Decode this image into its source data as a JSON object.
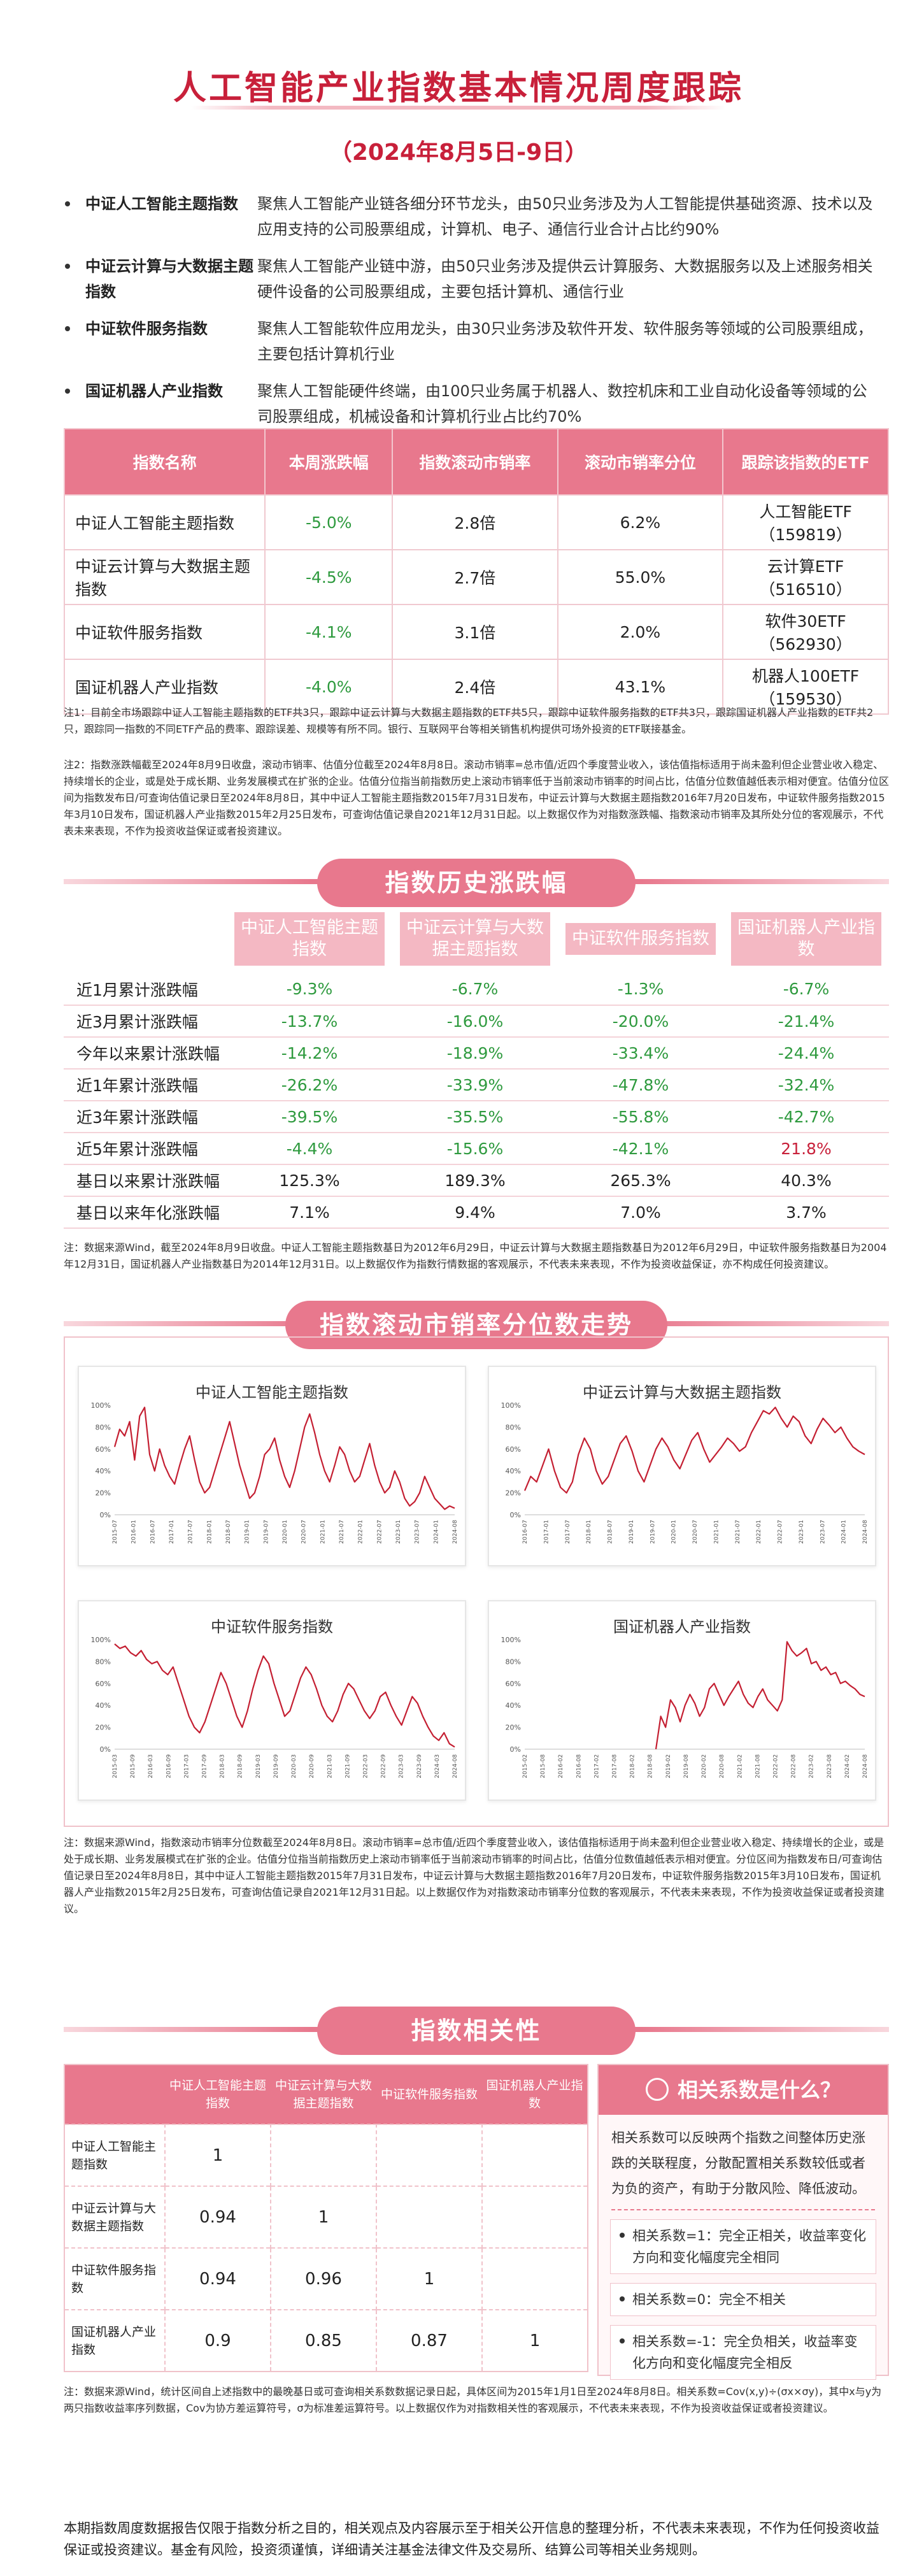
{
  "header": {
    "title": "人工智能产业指数基本情况周度跟踪",
    "subtitle": "（2024年8月5日-9日）"
  },
  "descriptions": [
    {
      "name": "中证人工智能主题指数",
      "text": "聚焦人工智能产业链各细分环节龙头，由50只业务涉及为人工智能提供基础资源、技术以及应用支持的公司股票组成，计算机、电子、通信行业合计占比约90%"
    },
    {
      "name": "中证云计算与大数据主题指数",
      "text": "聚焦人工智能产业链中游，由50只业务涉及提供云计算服务、大数据服务以及上述服务相关硬件设备的公司股票组成，主要包括计算机、通信行业"
    },
    {
      "name": "中证软件服务指数",
      "text": "聚焦人工智能软件应用龙头，由30只业务涉及软件开发、软件服务等领域的公司股票组成，主要包括计算机行业"
    },
    {
      "name": "国证机器人产业指数",
      "text": "聚焦人工智能硬件终端，由100只业务属于机器人、数控机床和工业自动化设备等领域的公司股票组成，机械设备和计算机行业占比约70%"
    }
  ],
  "overview_table": {
    "headers": [
      "指数名称",
      "本周涨跌幅",
      "指数滚动市销率",
      "滚动市销率分位",
      "跟踪该指数的ETF"
    ],
    "rows": [
      {
        "name": "中证人工智能主题指数",
        "weekly": "-5.0%",
        "ps": "2.8倍",
        "pct": "6.2%",
        "etf": "人工智能ETF",
        "etf_code": "（159819）"
      },
      {
        "name": "中证云计算与大数据主题指数",
        "weekly": "-4.5%",
        "ps": "2.7倍",
        "pct": "55.0%",
        "etf": "云计算ETF",
        "etf_code": "（516510）"
      },
      {
        "name": "中证软件服务指数",
        "weekly": "-4.1%",
        "ps": "3.1倍",
        "pct": "2.0%",
        "etf": "软件30ETF",
        "etf_code": "（562930）"
      },
      {
        "name": "国证机器人产业指数",
        "weekly": "-4.0%",
        "ps": "2.4倍",
        "pct": "43.1%",
        "etf": "机器人100ETF",
        "etf_code": "（159530）"
      }
    ],
    "notes": [
      "注1：目前全市场跟踪中证人工智能主题指数的ETF共3只，跟踪中证云计算与大数据主题指数的ETF共5只，跟踪中证软件服务指数的ETF共3只，跟踪国证机器人产业指数的ETF共2只，跟踪同一指数的不同ETF产品的费率、跟踪误差、规模等有所不同。银行、互联网平台等相关销售机构提供可场外投资的ETF联接基金。",
      "注2：指数涨跌幅截至2024年8月9日收盘，滚动市销率、估值分位截至2024年8月8日。滚动市销率=总市值/近四个季度营业收入，该估值指标适用于尚未盈利但企业营业收入稳定、持续增长的企业，或是处于成长期、业务发展模式在扩张的企业。估值分位指当前指数历史上滚动市销率低于当前滚动市销率的时间占比，估值分位数值越低表示相对便宜。估值分位区间为指数发布日/可查询估值记录日至2024年8月8日，其中中证人工智能主题指数2015年7月31日发布，中证云计算与大数据主题指数2016年7月20日发布，中证软件服务指数2015年3月10日发布，国证机器人产业指数2015年2月25日发布，可查询估值记录自2021年12月31日起。以上数据仅作为对指数涨跌幅、指数滚动市销率及其所处分位的客观展示，不代表未来表现，不作为投资收益保证或者投资建议。"
    ]
  },
  "history": {
    "banner": "指数历史涨跌幅",
    "headers": [
      "中证人工智能主题指数",
      "中证云计算与大数据主题指数",
      "中证软件服务指数",
      "国证机器人产业指数"
    ],
    "rows": [
      {
        "label": "近1月累计涨跌幅",
        "v": [
          "-9.3%",
          "-6.7%",
          "-1.3%",
          "-6.7%"
        ]
      },
      {
        "label": "近3月累计涨跌幅",
        "v": [
          "-13.7%",
          "-16.0%",
          "-20.0%",
          "-21.4%"
        ]
      },
      {
        "label": "今年以来累计涨跌幅",
        "v": [
          "-14.2%",
          "-18.9%",
          "-33.4%",
          "-24.4%"
        ]
      },
      {
        "label": "近1年累计涨跌幅",
        "v": [
          "-26.2%",
          "-33.9%",
          "-47.8%",
          "-32.4%"
        ]
      },
      {
        "label": "近3年累计涨跌幅",
        "v": [
          "-39.5%",
          "-35.5%",
          "-55.8%",
          "-42.7%"
        ]
      },
      {
        "label": "近5年累计涨跌幅",
        "v": [
          "-4.4%",
          "-15.6%",
          "-42.1%",
          "21.8%"
        ]
      },
      {
        "label": "基日以来累计涨跌幅",
        "v": [
          "125.3%",
          "189.3%",
          "265.3%",
          "40.3%"
        ]
      },
      {
        "label": "基日以来年化涨跌幅",
        "v": [
          "7.1%",
          "9.4%",
          "7.0%",
          "3.7%"
        ]
      }
    ],
    "note": "注：数据来源Wind，截至2024年8月9日收盘。中证人工智能主题指数基日为2012年6月29日，中证云计算与大数据主题指数基日为2012年6月29日，中证软件服务指数基日为2004年12月31日，国证机器人产业指数基日为2014年12月31日。以上数据仅作为指数行情数据的客观展示，不代表未来表现，不作为投资收益保证，亦不构成任何投资建议。"
  },
  "trend": {
    "banner": "指数滚动市销率分位数走势",
    "charts": [
      {
        "title": "中证人工智能主题指数",
        "ticks": [
          "2015-07",
          "2016-01",
          "2016-07",
          "2017-01",
          "2017-07",
          "2018-01",
          "2018-07",
          "2019-01",
          "2019-07",
          "2020-01",
          "2020-07",
          "2021-01",
          "2021-07",
          "2022-01",
          "2022-07",
          "2023-01",
          "2023-07",
          "2024-01",
          "2024-08"
        ],
        "series": [
          62,
          78,
          72,
          85,
          50,
          90,
          98,
          55,
          40,
          60,
          45,
          35,
          28,
          45,
          60,
          72,
          50,
          30,
          20,
          25,
          40,
          55,
          70,
          85,
          65,
          45,
          30,
          15,
          20,
          35,
          55,
          60,
          70,
          50,
          35,
          25,
          40,
          60,
          80,
          92,
          75,
          55,
          40,
          30,
          45,
          62,
          55,
          40,
          30,
          35,
          50,
          65,
          45,
          30,
          20,
          25,
          40,
          30,
          15,
          8,
          12,
          20,
          35,
          25,
          15,
          10,
          5,
          8,
          6
        ]
      },
      {
        "title": "中证云计算与大数据主题指数",
        "ticks": [
          "2016-07",
          "2017-01",
          "2017-07",
          "2018-01",
          "2018-07",
          "2019-01",
          "2019-07",
          "2020-01",
          "2020-07",
          "2021-01",
          "2021-07",
          "2022-01",
          "2022-07",
          "2023-01",
          "2023-07",
          "2024-01",
          "2024-08"
        ],
        "series": [
          22,
          35,
          30,
          45,
          60,
          40,
          25,
          20,
          30,
          55,
          70,
          60,
          40,
          28,
          35,
          50,
          65,
          72,
          58,
          40,
          30,
          45,
          60,
          70,
          62,
          50,
          42,
          55,
          68,
          75,
          60,
          48,
          55,
          62,
          70,
          65,
          58,
          62,
          75,
          85,
          95,
          92,
          98,
          88,
          80,
          90,
          85,
          72,
          65,
          78,
          88,
          82,
          75,
          80,
          70,
          62,
          58,
          55
        ]
      },
      {
        "title": "中证软件服务指数",
        "ticks": [
          "2015-03",
          "2015-09",
          "2016-03",
          "2016-09",
          "2017-03",
          "2017-09",
          "2018-03",
          "2018-09",
          "2019-03",
          "2019-09",
          "2020-03",
          "2020-09",
          "2021-03",
          "2021-09",
          "2022-03",
          "2022-09",
          "2023-03",
          "2023-09",
          "2024-03",
          "2024-08"
        ],
        "series": [
          96,
          92,
          94,
          88,
          85,
          90,
          82,
          78,
          80,
          72,
          68,
          75,
          60,
          45,
          30,
          20,
          15,
          25,
          40,
          55,
          70,
          60,
          45,
          30,
          20,
          35,
          55,
          72,
          85,
          78,
          60,
          45,
          30,
          35,
          50,
          65,
          75,
          68,
          55,
          40,
          30,
          25,
          35,
          50,
          60,
          55,
          45,
          35,
          28,
          35,
          48,
          52,
          40,
          30,
          22,
          35,
          48,
          42,
          30,
          20,
          12,
          8,
          15,
          5,
          2
        ]
      },
      {
        "title": "国证机器人产业指数",
        "ticks": [
          "2015-02",
          "2015-08",
          "2016-02",
          "2016-08",
          "2017-02",
          "2017-08",
          "2018-02",
          "2018-08",
          "2019-02",
          "2019-08",
          "2020-02",
          "2020-08",
          "2021-02",
          "2021-08",
          "2022-02",
          "2022-08",
          "2023-02",
          "2023-08",
          "2024-02",
          "2024-08"
        ],
        "series": [
          null,
          null,
          null,
          null,
          null,
          null,
          null,
          null,
          null,
          null,
          null,
          null,
          null,
          null,
          null,
          null,
          null,
          null,
          null,
          null,
          null,
          null,
          null,
          null,
          null,
          null,
          null,
          0,
          30,
          20,
          45,
          38,
          25,
          40,
          50,
          42,
          30,
          38,
          55,
          60,
          50,
          40,
          48,
          55,
          62,
          50,
          42,
          38,
          48,
          55,
          45,
          40,
          35,
          45,
          98,
          90,
          85,
          88,
          92,
          78,
          80,
          72,
          75,
          68,
          70,
          60,
          62,
          58,
          55,
          50,
          48
        ]
      }
    ],
    "note": "注：数据来源Wind，指数滚动市销率分位数截至2024年8月8日。滚动市销率=总市值/近四个季度营业收入，该估值指标适用于尚未盈利但企业营业收入稳定、持续增长的企业，或是处于成长期、业务发展模式在扩张的企业。估值分位指当前指数历史上滚动市销率低于当前滚动市销率的时间占比，估值分位数值越低表示相对便宜。分位区间为指数发布日/可查询估值记录日至2024年8月8日，其中中证人工智能主题指数2015年7月31日发布，中证云计算与大数据主题指数2016年7月20日发布，中证软件服务指数2015年3月10日发布，国证机器人产业指数2015年2月25日发布，可查询估值记录自2021年12月31日起。以上数据仅作为对指数滚动市销率分位数的客观展示，不代表未来表现，不作为投资收益保证或者投资建议。"
  },
  "correlation": {
    "banner": "指数相关性",
    "headers": [
      "中证人工智能主题指数",
      "中证云计算与大数据主题指数",
      "中证软件服务指数",
      "国证机器人产业指数"
    ],
    "rows": [
      {
        "name": "中证人工智能主题指数",
        "v": [
          "1",
          "",
          "",
          ""
        ]
      },
      {
        "name": "中证云计算与大数据主题指数",
        "v": [
          "0.94",
          "1",
          "",
          ""
        ]
      },
      {
        "name": "中证软件服务指数",
        "v": [
          "0.94",
          "0.96",
          "1",
          ""
        ]
      },
      {
        "name": "国证机器人产业指数",
        "v": [
          "0.9",
          "0.85",
          "0.87",
          "1"
        ]
      }
    ],
    "qa_title": "相关系数是什么？",
    "qa_text": "相关系数可以反映两个指数之间整体历史涨跌的关联程度，分散配置相关系数较低或者为负的资产，有助于分散风险、降低波动。",
    "qa_points": [
      "相关系数=1：完全正相关，收益率变化方向和变化幅度完全相同",
      "相关系数=0：完全不相关",
      "相关系数=-1：完全负相关，收益率变化方向和变化幅度完全相反"
    ],
    "note": "注：数据来源Wind，统计区间自上述指数中的最晚基日或可查询相关系数数据记录日起，具体区间为2015年1月1日至2024年8月8日。相关系数=Cov(x,y)÷(σx×σy)，其中x与y为两只指数收益率序列数据，Cov为协方差运算符号，σ为标准差运算符号。以上数据仅作为对指数相关性的客观展示，不代表未来表现，不作为投资收益保证或者投资建议。"
  },
  "footer": "本期指数周度数据报告仅限于指数分析之目的，相关观点及内容展示至于相关公开信息的整理分析，不代表未来表现，不作为任何投资收益保证或投资建议。基金有风险，投资须谨慎，详细请关注基金法律文件及交易所、结算公司等相关业务规则。",
  "colors": {
    "accent": "#c8203a",
    "pink": "#e8788d",
    "negative": "#2e9a3e",
    "line": "#c41f32"
  }
}
